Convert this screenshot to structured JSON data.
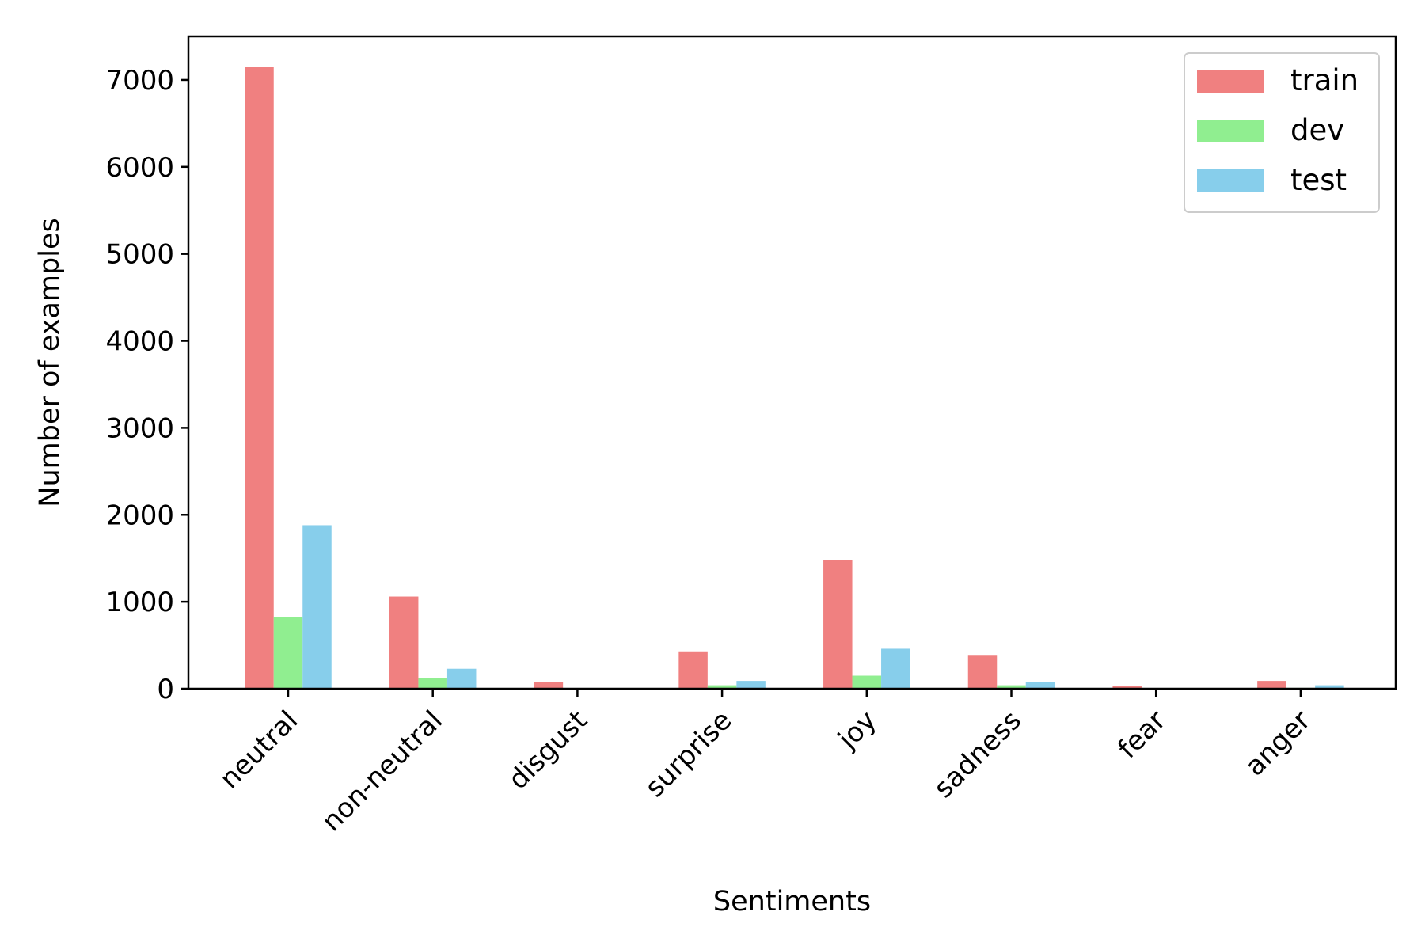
{
  "chart_data": {
    "type": "bar",
    "categories": [
      "neutral",
      "non-neutral",
      "disgust",
      "surprise",
      "joy",
      "sadness",
      "fear",
      "anger"
    ],
    "series": [
      {
        "name": "train",
        "color": "#F08080",
        "values": [
          7150,
          1060,
          80,
          430,
          1480,
          380,
          30,
          90
        ]
      },
      {
        "name": "dev",
        "color": "#90EE90",
        "values": [
          820,
          120,
          5,
          40,
          150,
          40,
          5,
          10
        ]
      },
      {
        "name": "test",
        "color": "#87CEEB",
        "values": [
          1880,
          230,
          5,
          90,
          460,
          80,
          5,
          40
        ]
      }
    ],
    "xlabel": "Sentiments",
    "ylabel": "Number of examples",
    "ylim": [
      0,
      7500
    ],
    "yticks": [
      0,
      1000,
      2000,
      3000,
      4000,
      5000,
      6000,
      7000
    ],
    "grid": false,
    "legend": "top-right"
  }
}
